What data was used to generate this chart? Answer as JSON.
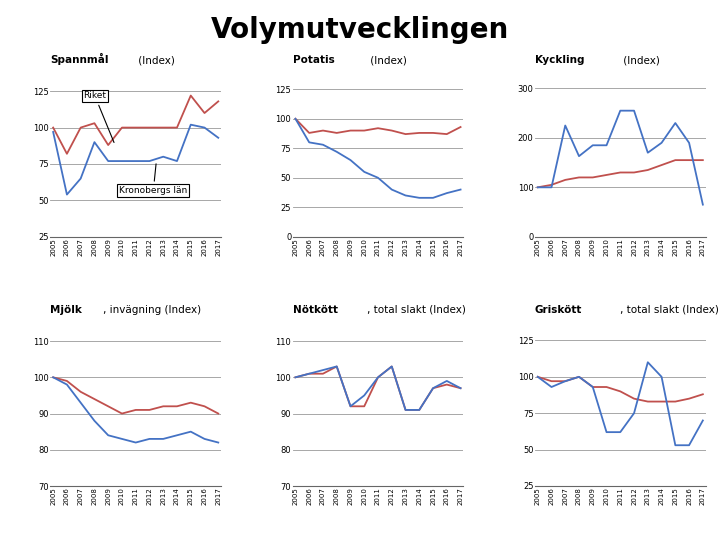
{
  "title": "Volymutvecklingen",
  "years": [
    2005,
    2006,
    2007,
    2008,
    2009,
    2010,
    2011,
    2012,
    2013,
    2014,
    2015,
    2016,
    2017
  ],
  "color_riket": "#C0504D",
  "color_kronoberg": "#4472C4",
  "subplots": [
    {
      "title_bold": "Spannmål",
      "title_normal": " (Index)",
      "ylim": [
        25,
        132
      ],
      "yticks": [
        25,
        50,
        75,
        100,
        125
      ],
      "riket": [
        100,
        82,
        100,
        103,
        88,
        100,
        100,
        100,
        100,
        100,
        122,
        110,
        118
      ],
      "kronoberg": [
        97,
        54,
        65,
        90,
        77,
        77,
        77,
        77,
        80,
        77,
        102,
        100,
        93
      ]
    },
    {
      "title_bold": "Potatis",
      "title_normal": " (Index)",
      "ylim": [
        0,
        132
      ],
      "yticks": [
        0,
        25,
        50,
        75,
        100,
        125
      ],
      "riket": [
        100,
        88,
        90,
        88,
        90,
        90,
        92,
        90,
        87,
        88,
        88,
        87,
        93
      ],
      "kronoberg": [
        100,
        80,
        78,
        72,
        65,
        55,
        50,
        40,
        35,
        33,
        33,
        37,
        40
      ]
    },
    {
      "title_bold": "Kyckling",
      "title_normal": " (Index)",
      "ylim": [
        0,
        315
      ],
      "yticks": [
        0,
        100,
        200,
        300
      ],
      "riket": [
        100,
        105,
        115,
        120,
        120,
        125,
        130,
        130,
        135,
        145,
        155,
        155,
        155
      ],
      "kronoberg": [
        100,
        100,
        225,
        163,
        185,
        185,
        255,
        255,
        170,
        190,
        230,
        190,
        65
      ]
    },
    {
      "title_bold": "Mjölk",
      "title_normal": ", invägning (Index)",
      "ylim": [
        70,
        113
      ],
      "yticks": [
        70,
        80,
        90,
        100,
        110
      ],
      "riket": [
        100,
        99,
        96,
        94,
        92,
        90,
        91,
        91,
        92,
        92,
        93,
        92,
        90
      ],
      "kronoberg": [
        100,
        98,
        93,
        88,
        84,
        83,
        82,
        83,
        83,
        84,
        85,
        83,
        82
      ]
    },
    {
      "title_bold": "Nötkött",
      "title_normal": ", total slakt (Index)",
      "ylim": [
        70,
        113
      ],
      "yticks": [
        70,
        80,
        90,
        100,
        110
      ],
      "riket": [
        100,
        101,
        101,
        103,
        92,
        92,
        100,
        103,
        91,
        91,
        97,
        98,
        97
      ],
      "kronoberg": [
        100,
        101,
        102,
        103,
        92,
        95,
        100,
        103,
        91,
        91,
        97,
        99,
        97
      ]
    },
    {
      "title_bold": "Griskött",
      "title_normal": ", total slakt (Index)",
      "ylim": [
        25,
        132
      ],
      "yticks": [
        25,
        50,
        75,
        100,
        125
      ],
      "riket": [
        100,
        97,
        97,
        100,
        93,
        93,
        90,
        85,
        83,
        83,
        83,
        85,
        88
      ],
      "kronoberg": [
        100,
        93,
        97,
        100,
        93,
        62,
        62,
        75,
        110,
        100,
        53,
        53,
        70
      ]
    }
  ]
}
